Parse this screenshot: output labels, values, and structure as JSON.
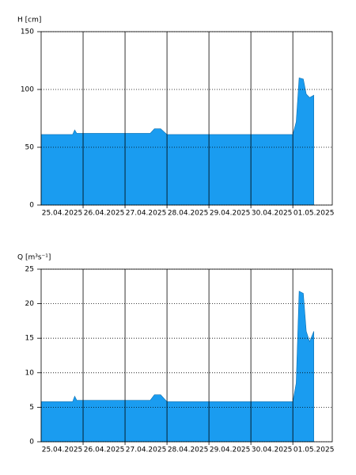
{
  "chart_data": [
    {
      "type": "area",
      "ylabel": "H [cm]",
      "x": [
        0,
        0.75,
        0.8,
        0.85,
        2.6,
        2.7,
        2.85,
        3.0,
        6.0,
        6.08,
        6.15,
        6.25,
        6.32,
        6.4,
        6.5
      ],
      "series": [
        {
          "color": "#1a9cf0",
          "values": [
            61,
            61,
            65,
            62,
            62,
            66,
            66,
            61,
            61,
            72,
            110,
            109,
            96,
            93,
            95
          ]
        }
      ],
      "xlim": [
        0,
        6.94
      ],
      "ylim": [
        0,
        150
      ],
      "yticks": [
        0,
        50,
        100,
        150
      ],
      "xticks": [
        {
          "value": 0.5,
          "label": "25.04.2025"
        },
        {
          "value": 1.5,
          "label": "26.04.2025"
        },
        {
          "value": 2.5,
          "label": "27.04.2025"
        },
        {
          "value": 3.5,
          "label": "28.04.2025"
        },
        {
          "value": 4.5,
          "label": "29.04.2025"
        },
        {
          "value": 5.5,
          "label": "30.04.2025"
        },
        {
          "value": 6.5,
          "label": "01.05.2025"
        }
      ],
      "xgrid": [
        1,
        2,
        3,
        4,
        5,
        6
      ],
      "grid": true
    },
    {
      "type": "area",
      "ylabel": "Q [m³s⁻¹]",
      "x": [
        0,
        0.75,
        0.8,
        0.85,
        2.6,
        2.7,
        2.85,
        3.0,
        6.0,
        6.08,
        6.15,
        6.25,
        6.32,
        6.4,
        6.5
      ],
      "series": [
        {
          "color": "#1a9cf0",
          "values": [
            5.8,
            5.8,
            6.6,
            6.0,
            6.0,
            6.8,
            6.8,
            5.8,
            5.8,
            8.5,
            21.8,
            21.5,
            16,
            14.5,
            16
          ]
        }
      ],
      "xlim": [
        0,
        6.94
      ],
      "ylim": [
        0,
        25
      ],
      "yticks": [
        0,
        5,
        10,
        15,
        20,
        25
      ],
      "xticks": [
        {
          "value": 0.5,
          "label": "25.04.2025"
        },
        {
          "value": 1.5,
          "label": "26.04.2025"
        },
        {
          "value": 2.5,
          "label": "27.04.2025"
        },
        {
          "value": 3.5,
          "label": "28.04.2025"
        },
        {
          "value": 4.5,
          "label": "29.04.2025"
        },
        {
          "value": 5.5,
          "label": "30.04.2025"
        },
        {
          "value": 6.5,
          "label": "01.05.2025"
        }
      ],
      "xgrid": [
        1,
        2,
        3,
        4,
        5,
        6
      ],
      "grid": true
    }
  ]
}
